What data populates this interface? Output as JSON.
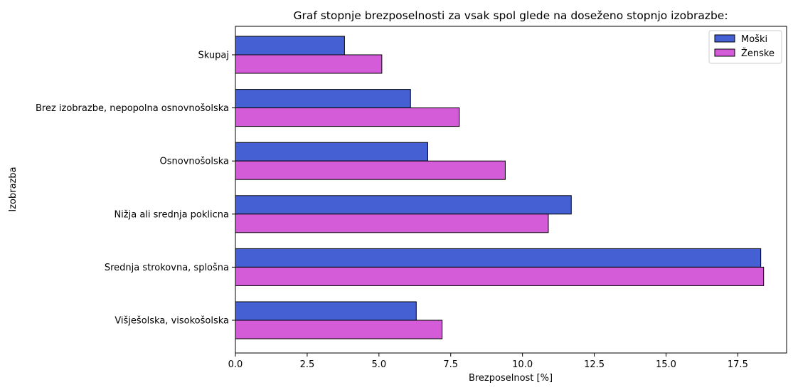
{
  "chart_data": {
    "type": "bar",
    "orientation": "horizontal",
    "title": "Graf stopnje brezposelnosti za vsak spol glede na doseženo stopnjo izobrazbe:",
    "xlabel": "Brezposelnost [%]",
    "ylabel": "Izobrazba",
    "xlim": [
      0,
      19.2
    ],
    "xticks": [
      "0.0",
      "2.5",
      "5.0",
      "7.5",
      "10.0",
      "12.5",
      "15.0",
      "17.5"
    ],
    "categories": [
      "Skupaj",
      "Brez izobrazbe, nepopolna osnovnošolska",
      "Osnovnošolska",
      "Nižja ali srednja poklicna",
      "Srednja strokovna, splošna",
      "Višješolska, visokošolska"
    ],
    "series": [
      {
        "name": "Moški",
        "color": "#4560d2",
        "values": [
          3.8,
          6.1,
          6.7,
          11.7,
          18.3,
          6.3
        ]
      },
      {
        "name": "Ženske",
        "color": "#d45cd8",
        "values": [
          5.1,
          7.8,
          9.4,
          10.9,
          18.4,
          7.2
        ]
      }
    ],
    "legend": {
      "position": "top-right"
    },
    "grid": false
  }
}
